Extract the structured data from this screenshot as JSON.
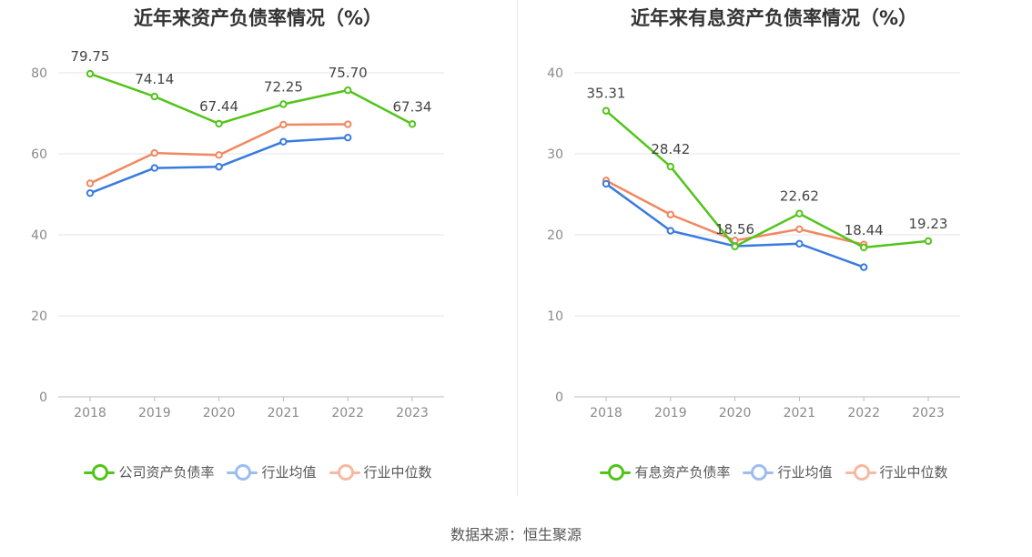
{
  "charts": [
    {
      "title": "近年来资产负债率情况（%）",
      "legend": [
        "公司资产负债率",
        "行业均值",
        "行业中位数"
      ]
    },
    {
      "title": "近年来有息资产负债率情况（%）",
      "legend": [
        "有息资产负债率",
        "行业均值",
        "行业中位数"
      ]
    }
  ],
  "source": "数据来源：恒生聚源",
  "colors": {
    "company": "#52c41a",
    "avg": "#3a7be0",
    "median": "#f08860",
    "grid": "#e6e6e6",
    "axis": "#bbbbbb"
  },
  "chart_data": [
    {
      "type": "line",
      "title": "近年来资产负债率情况（%）",
      "categories": [
        "2018",
        "2019",
        "2020",
        "2021",
        "2022",
        "2023"
      ],
      "ylim": [
        0,
        80
      ],
      "yticks": [
        0,
        20,
        40,
        60,
        80
      ],
      "grid": true,
      "legend_position": "bottom",
      "series": [
        {
          "name": "公司资产负债率",
          "values": [
            79.75,
            74.14,
            67.44,
            72.25,
            75.7,
            67.34
          ],
          "labels": [
            "79.75",
            "74.14",
            "67.44",
            "72.25",
            "75.70",
            "67.34"
          ]
        },
        {
          "name": "行业均值",
          "values": [
            50.3,
            56.5,
            56.8,
            63.0,
            64.0,
            null
          ]
        },
        {
          "name": "行业中位数",
          "values": [
            52.7,
            60.2,
            59.7,
            67.2,
            67.3,
            null
          ]
        }
      ]
    },
    {
      "type": "line",
      "title": "近年来有息资产负债率情况（%）",
      "categories": [
        "2018",
        "2019",
        "2020",
        "2021",
        "2022",
        "2023"
      ],
      "ylim": [
        0,
        40
      ],
      "yticks": [
        0,
        10,
        20,
        30,
        40
      ],
      "grid": true,
      "legend_position": "bottom",
      "series": [
        {
          "name": "有息资产负债率",
          "values": [
            35.31,
            28.42,
            18.56,
            22.62,
            18.44,
            19.23
          ],
          "labels": [
            "35.31",
            "28.42",
            "18.56",
            "22.62",
            "18.44",
            "19.23"
          ]
        },
        {
          "name": "行业均值",
          "values": [
            26.3,
            20.5,
            18.6,
            18.9,
            16.0,
            null
          ]
        },
        {
          "name": "行业中位数",
          "values": [
            26.7,
            22.5,
            19.3,
            20.7,
            18.8,
            null
          ]
        }
      ]
    }
  ]
}
